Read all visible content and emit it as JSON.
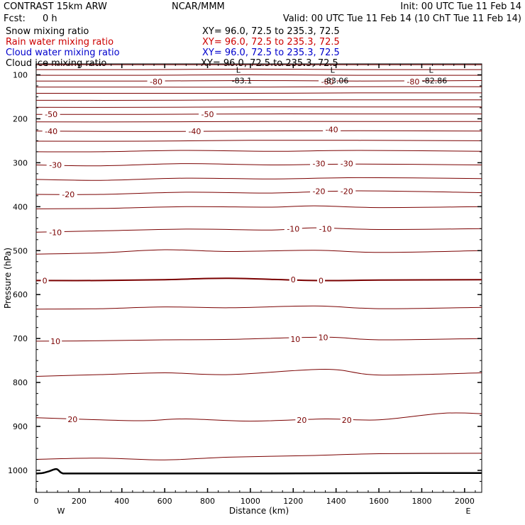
{
  "header": {
    "model": "CONTRAST 15km ARW",
    "org": "NCAR/MMM",
    "init": "Init: 00 UTC Tue 11 Feb 14",
    "fcst_label": "Fcst:",
    "fcst_value": "0 h",
    "valid": "Valid: 00 UTC Tue 11 Feb 14 (10 ChT Tue 11 Feb 14)"
  },
  "legend": [
    {
      "name": "Snow mixing ratio",
      "xy": "XY=  96.0, 72.5 to 235.3, 72.5",
      "color": "#000000"
    },
    {
      "name": "Rain water mixing ratio",
      "xy": "XY=  96.0, 72.5 to 235.3, 72.5",
      "color": "#cc0000"
    },
    {
      "name": "Cloud water mixing ratio",
      "xy": "XY=  96.0, 72.5 to 235.3, 72.5",
      "color": "#0000cc"
    },
    {
      "name": "Cloud ice mixing ratio",
      "xy": "XY=  96.0, 72.5 to 235.3, 72.5",
      "color": "#000000"
    }
  ],
  "chart_data": {
    "type": "line",
    "xlabel": "Distance (km)",
    "ylabel": "Pressure (hPa)",
    "xlim": [
      0,
      2080
    ],
    "ylim": [
      1050,
      75
    ],
    "x_ticks": [
      0,
      200,
      400,
      600,
      800,
      1000,
      1200,
      1400,
      1600,
      1800,
      2000
    ],
    "y_ticks": [
      100,
      200,
      300,
      400,
      500,
      600,
      700,
      800,
      900,
      1000
    ],
    "x_end_labels": {
      "left": "W",
      "right": "E"
    },
    "contour_color": "#7a0000",
    "terrain_color": "#000000",
    "series": [
      {
        "x": [
          0,
          500,
          1000,
          1500,
          2080
        ],
        "p": [
          77,
          77,
          77,
          77,
          77
        ]
      },
      {
        "x": [
          0,
          500,
          1000,
          1500,
          2080
        ],
        "p": [
          88,
          88,
          87,
          88,
          88
        ]
      },
      {
        "x": [
          0,
          500,
          1000,
          1500,
          2080
        ],
        "p": [
          101,
          101,
          100,
          101,
          101
        ]
      },
      {
        "x": [
          0,
          500,
          1000,
          1500,
          2080
        ],
        "p": [
          114,
          114,
          113,
          114,
          113
        ]
      },
      {
        "x": [
          0,
          500,
          1000,
          1500,
          2080
        ],
        "p": [
          128,
          128,
          128,
          127,
          127
        ]
      },
      {
        "x": [
          0,
          500,
          1000,
          1500,
          2080
        ],
        "p": [
          142,
          142,
          142,
          141,
          141
        ]
      },
      {
        "x": [
          0,
          500,
          1000,
          1500,
          2080
        ],
        "p": [
          158,
          158,
          157,
          157,
          157
        ]
      },
      {
        "x": [
          0,
          500,
          1000,
          1500,
          2080
        ],
        "p": [
          174,
          174,
          173,
          173,
          173
        ]
      },
      {
        "x": [
          0,
          500,
          1000,
          1500,
          2080
        ],
        "p": [
          190,
          190,
          189,
          189,
          189
        ]
      },
      {
        "x": [
          0,
          500,
          1000,
          1500,
          2080
        ],
        "p": [
          207,
          207,
          206,
          206,
          206
        ]
      },
      {
        "x": [
          0,
          500,
          1000,
          1500,
          2080
        ],
        "p": [
          228,
          229,
          228,
          227,
          228
        ]
      },
      {
        "x": [
          0,
          500,
          1000,
          1500,
          2080
        ],
        "p": [
          251,
          251,
          249,
          249,
          250
        ]
      },
      {
        "x": [
          0,
          300,
          700,
          1100,
          1500,
          2080
        ],
        "p": [
          275,
          275,
          272,
          274,
          272,
          274
        ]
      },
      {
        "x": [
          0,
          300,
          700,
          1100,
          1500,
          2080
        ],
        "p": [
          305,
          307,
          302,
          305,
          303,
          305
        ]
      },
      {
        "x": [
          0,
          300,
          700,
          1100,
          1500,
          2080
        ],
        "p": [
          338,
          340,
          335,
          337,
          334,
          336
        ]
      },
      {
        "x": [
          0,
          300,
          700,
          1100,
          1500,
          2080
        ],
        "p": [
          372,
          372,
          367,
          369,
          364,
          368
        ]
      },
      {
        "x": [
          0,
          300,
          700,
          1100,
          1300,
          1600,
          2080
        ],
        "p": [
          405,
          404,
          400,
          401,
          398,
          402,
          400
        ]
      },
      {
        "x": [
          0,
          300,
          700,
          1100,
          1300,
          1600,
          2080
        ],
        "p": [
          458,
          455,
          451,
          453,
          448,
          452,
          450
        ]
      },
      {
        "x": [
          0,
          300,
          600,
          900,
          1300,
          1600,
          2080
        ],
        "p": [
          508,
          505,
          498,
          502,
          499,
          504,
          500
        ]
      },
      {
        "x": [
          0,
          300,
          600,
          900,
          1300,
          1600,
          2080
        ],
        "p": [
          568,
          568,
          566,
          563,
          568,
          567,
          566
        ]
      },
      {
        "x": [
          0,
          300,
          600,
          900,
          1300,
          1600,
          2080
        ],
        "p": [
          633,
          632,
          628,
          630,
          626,
          632,
          629
        ]
      },
      {
        "x": [
          0,
          300,
          600,
          900,
          1350,
          1600,
          2080
        ],
        "p": [
          706,
          705,
          703,
          702,
          697,
          703,
          700
        ]
      },
      {
        "x": [
          0,
          300,
          600,
          900,
          1350,
          1600,
          2080
        ],
        "p": [
          786,
          782,
          778,
          782,
          770,
          783,
          778
        ]
      },
      {
        "x": [
          0,
          300,
          500,
          700,
          1000,
          1350,
          1600,
          1900,
          2080
        ],
        "p": [
          880,
          885,
          887,
          883,
          888,
          883,
          885,
          870,
          871
        ]
      },
      {
        "x": [
          0,
          300,
          600,
          900,
          1300,
          1600,
          2080
        ],
        "p": [
          975,
          972,
          976,
          970,
          966,
          962,
          961
        ]
      }
    ],
    "contour_labels": [
      {
        "text": "-80",
        "x": 560,
        "p": 115
      },
      {
        "text": "-80",
        "x": 1360,
        "p": 115
      },
      {
        "text": "-80",
        "x": 1760,
        "p": 115
      },
      {
        "text": "-50",
        "x": 70,
        "p": 190
      },
      {
        "text": "-50",
        "x": 800,
        "p": 190
      },
      {
        "text": "-40",
        "x": 70,
        "p": 228
      },
      {
        "text": "-40",
        "x": 740,
        "p": 228
      },
      {
        "text": "-40",
        "x": 1380,
        "p": 224
      },
      {
        "text": "-30",
        "x": 90,
        "p": 305
      },
      {
        "text": "-30",
        "x": 1320,
        "p": 302
      },
      {
        "text": "-30",
        "x": 1450,
        "p": 302
      },
      {
        "text": "-20",
        "x": 150,
        "p": 372
      },
      {
        "text": "-20",
        "x": 1320,
        "p": 365
      },
      {
        "text": "-20",
        "x": 1450,
        "p": 365
      },
      {
        "text": "-10",
        "x": 90,
        "p": 458
      },
      {
        "text": "-10",
        "x": 1200,
        "p": 450
      },
      {
        "text": "-10",
        "x": 1350,
        "p": 450
      },
      {
        "text": "0",
        "x": 40,
        "p": 568
      },
      {
        "text": "0",
        "x": 1200,
        "p": 566
      },
      {
        "text": "0",
        "x": 1330,
        "p": 568
      },
      {
        "text": "10",
        "x": 90,
        "p": 706
      },
      {
        "text": "10",
        "x": 1210,
        "p": 701
      },
      {
        "text": "10",
        "x": 1340,
        "p": 697
      },
      {
        "text": "20",
        "x": 170,
        "p": 884
      },
      {
        "text": "20",
        "x": 1240,
        "p": 885
      },
      {
        "text": "20",
        "x": 1450,
        "p": 885
      }
    ],
    "low_markers": [
      {
        "letter": "L",
        "value": "-83.1",
        "x": 960,
        "p": 89
      },
      {
        "letter": "L",
        "value": "-83.06",
        "x": 1400,
        "p": 89
      },
      {
        "letter": "L",
        "value": "-82.86",
        "x": 1860,
        "p": 89
      }
    ],
    "terrain": {
      "x": [
        0,
        30,
        60,
        95,
        120,
        160,
        400,
        1000,
        1800,
        2080
      ],
      "p": [
        1007,
        1006,
        1002,
        997,
        1006,
        1007,
        1007,
        1007,
        1006,
        1006
      ]
    }
  }
}
